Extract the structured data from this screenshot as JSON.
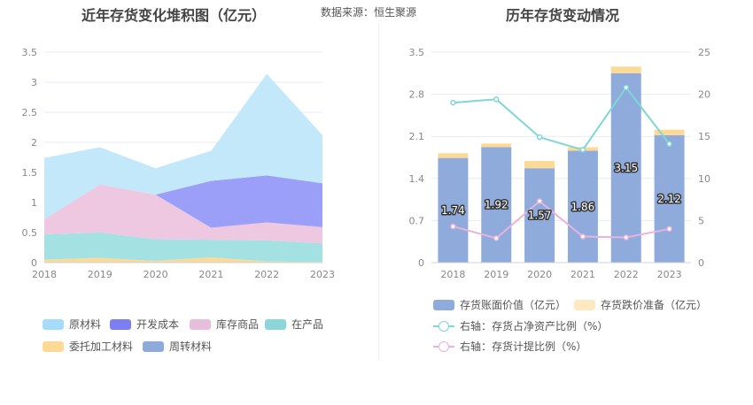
{
  "left_title": "近年存货变化堆积图（亿元）",
  "source_label": "数据来源：",
  "source_value": "恒生聚源",
  "right_title": "历年存货变动情况",
  "chart_data": [
    {
      "type": "area",
      "stacked": true,
      "categories": [
        "2018",
        "2019",
        "2020",
        "2021",
        "2022",
        "2023"
      ],
      "ylim": [
        0,
        3.5
      ],
      "yticks": [
        "0",
        "0.5",
        "1",
        "1.5",
        "2",
        "2.5",
        "3",
        "3.5"
      ],
      "series": [
        {
          "name": "委托加工材料",
          "color": "#fbd998",
          "values": [
            0.05,
            0.08,
            0.03,
            0.09,
            0.02,
            0.01
          ]
        },
        {
          "name": "在产品",
          "color": "#a3e1e3",
          "values": [
            0.42,
            0.42,
            0.36,
            0.29,
            0.35,
            0.31
          ]
        },
        {
          "name": "库存商品",
          "color": "#eec7e0",
          "values": [
            0.25,
            0.8,
            0.74,
            0.2,
            0.3,
            0.27
          ]
        },
        {
          "name": "开发成本",
          "color": "#9b9ff7",
          "values": [
            0,
            0,
            0,
            0.78,
            0.78,
            0.73
          ]
        },
        {
          "name": "周转材料",
          "color": "#8eaadb",
          "values": [
            0,
            0,
            0,
            0,
            0,
            0
          ]
        },
        {
          "name": "原材料",
          "color": "#c2e8fa",
          "values": [
            1.02,
            0.62,
            0.44,
            0.5,
            1.69,
            0.8
          ]
        }
      ],
      "legend_order": [
        "原材料",
        "开发成本",
        "库存商品",
        "在产品",
        "委托加工材料",
        "周转材料"
      ],
      "legend_colors": [
        "#a6dcf9",
        "#7e7ef3",
        "#e8bfda",
        "#8bd6d9",
        "#fcd995",
        "#8eaadb"
      ]
    },
    {
      "type": "bar",
      "categories": [
        "2018",
        "2019",
        "2020",
        "2021",
        "2022",
        "2023"
      ],
      "ylim": [
        0,
        3.5
      ],
      "yticks": [
        "0",
        "0.7",
        "1.4",
        "2.1",
        "2.8",
        "3.5"
      ],
      "y2lim": [
        0,
        25
      ],
      "y2ticks": [
        "0",
        "5",
        "10",
        "15",
        "20",
        "25"
      ],
      "bars": [
        {
          "name": "存货账面价值（亿元）",
          "color": "#8eabdb",
          "values": [
            1.74,
            1.92,
            1.57,
            1.86,
            3.15,
            2.12
          ],
          "labels": [
            "1.74",
            "1.92",
            "1.57",
            "1.86",
            "3.15",
            "2.12"
          ]
        },
        {
          "name": "存货跌价准备（亿元）",
          "color": "#fcd995",
          "values": [
            0.08,
            0.06,
            0.12,
            0.06,
            0.11,
            0.09
          ]
        }
      ],
      "lines": [
        {
          "name": "右轴：存货占净资产比例（%）",
          "color": "#7fd6d6",
          "values": [
            19.0,
            19.4,
            14.9,
            13.4,
            20.8,
            14.1
          ]
        },
        {
          "name": "右轴：存货计提比例（%）",
          "color": "#e8b3dc",
          "values": [
            4.3,
            2.9,
            7.3,
            3.1,
            3.0,
            4.0
          ]
        }
      ]
    }
  ]
}
